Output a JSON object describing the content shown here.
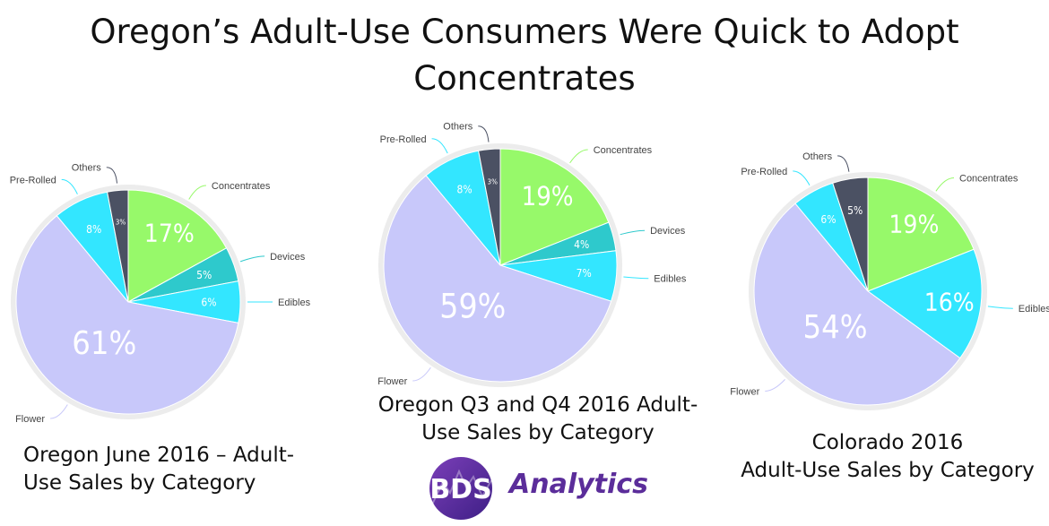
{
  "title": {
    "line1": "Oregon’s Adult-Use Consumers Were Quick to Adopt",
    "line2": "Concentrates"
  },
  "chart_data": [
    {
      "type": "pie",
      "title": "Oregon June 2016 – Adult-Use Sales by Category",
      "title_lines": [
        "Oregon June 2016 – Adult-",
        "Use Sales by Category"
      ],
      "slices": [
        {
          "label": "Concentrates",
          "value": 17,
          "pct_label": "17%",
          "color": "#97f96a"
        },
        {
          "label": "Devices",
          "value": 5,
          "pct_label": "5%",
          "color": "#2ec9cc"
        },
        {
          "label": "Edibles",
          "value": 6,
          "pct_label": "6%",
          "color": "#33e6ff"
        },
        {
          "label": "Flower",
          "value": 61,
          "pct_label": "61%",
          "color": "#c8c8fa"
        },
        {
          "label": "Pre-Rolled",
          "value": 8,
          "pct_label": "8%",
          "color": "#33e6ff"
        },
        {
          "label": "Others",
          "value": 3,
          "pct_label": "3%",
          "color": "#4b5163"
        }
      ]
    },
    {
      "type": "pie",
      "title": "Oregon Q3 and Q4 2016 Adult-Use Sales by Category",
      "title_lines": [
        "Oregon Q3 and Q4 2016 Adult-",
        "Use Sales by Category"
      ],
      "slices": [
        {
          "label": "Concentrates",
          "value": 19,
          "pct_label": "19%",
          "color": "#97f96a"
        },
        {
          "label": "Devices",
          "value": 4,
          "pct_label": "4%",
          "color": "#2ec9cc"
        },
        {
          "label": "Edibles",
          "value": 7,
          "pct_label": "7%",
          "color": "#33e6ff"
        },
        {
          "label": "Flower",
          "value": 59,
          "pct_label": "59%",
          "color": "#c8c8fa"
        },
        {
          "label": "Pre-Rolled",
          "value": 8,
          "pct_label": "8%",
          "color": "#33e6ff"
        },
        {
          "label": "Others",
          "value": 3,
          "pct_label": "3%",
          "color": "#4b5163"
        }
      ]
    },
    {
      "type": "pie",
      "title": "Colorado 2016 Adult-Use Sales by Category",
      "title_lines": [
        "Colorado 2016",
        "Adult-Use Sales by Category"
      ],
      "slices": [
        {
          "label": "Concentrates",
          "value": 19,
          "pct_label": "19%",
          "color": "#97f96a"
        },
        {
          "label": "Edibles",
          "value": 16,
          "pct_label": "16%",
          "color": "#33e6ff"
        },
        {
          "label": "Flower",
          "value": 54,
          "pct_label": "54%",
          "color": "#c8c8fa"
        },
        {
          "label": "Pre-Rolled",
          "value": 6,
          "pct_label": "6%",
          "color": "#33e6ff"
        },
        {
          "label": "Others",
          "value": 5,
          "pct_label": "5%",
          "color": "#4b5163"
        }
      ]
    }
  ],
  "logo": {
    "mark": "BDS",
    "text": "Analytics",
    "color": "#5b2d9a"
  }
}
